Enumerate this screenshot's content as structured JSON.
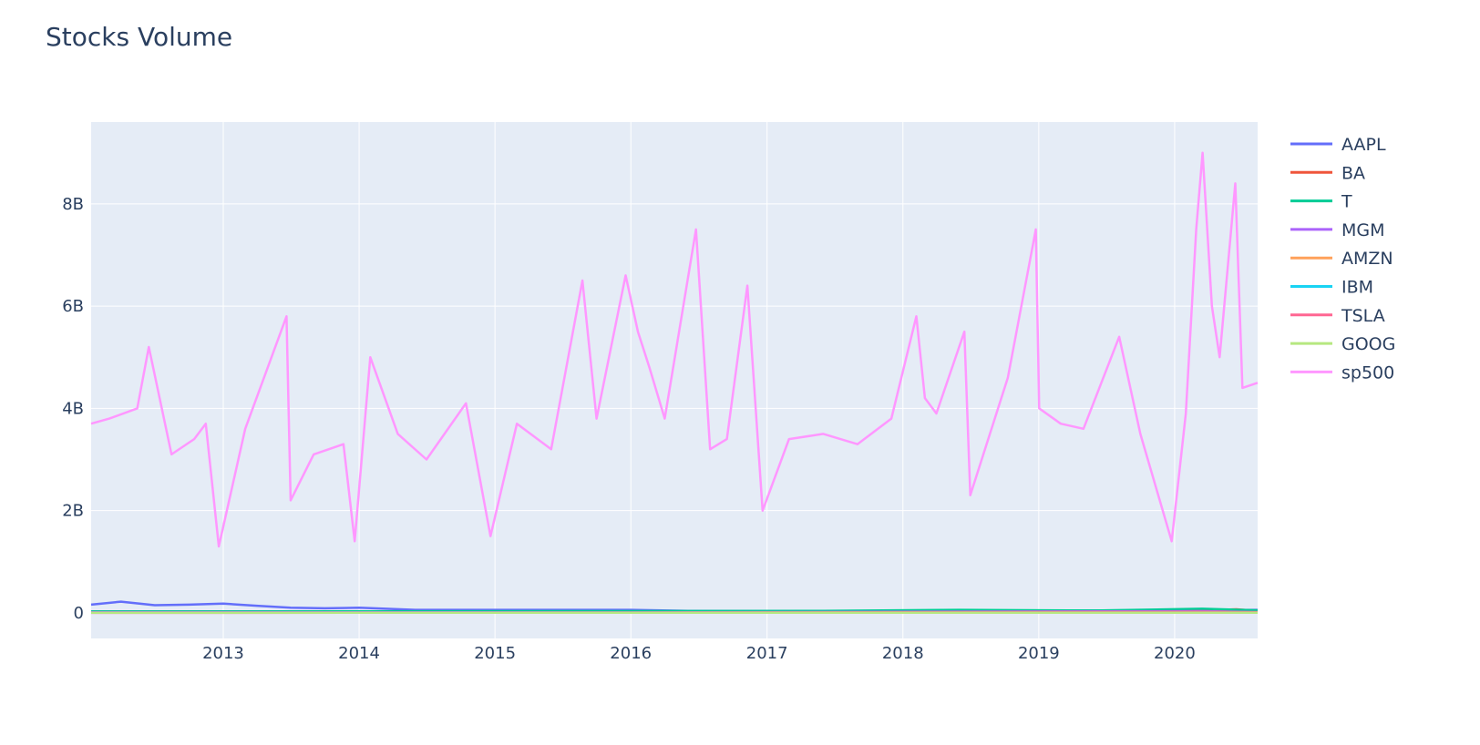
{
  "chart_data": {
    "type": "line",
    "title": "Stocks Volume",
    "xlabel": "",
    "ylabel": "",
    "x_range": [
      "2012-01-12",
      "2020-08-11"
    ],
    "ylim": [
      -500000000.0,
      9600000000.0
    ],
    "y_ticks": [
      {
        "value": 0,
        "label": "0"
      },
      {
        "value": 2000000000.0,
        "label": "2B"
      },
      {
        "value": 4000000000.0,
        "label": "4B"
      },
      {
        "value": 6000000000.0,
        "label": "6B"
      },
      {
        "value": 8000000000.0,
        "label": "8B"
      }
    ],
    "x_ticks": [
      {
        "value": "2013-01-01",
        "label": "2013"
      },
      {
        "value": "2014-01-01",
        "label": "2014"
      },
      {
        "value": "2015-01-01",
        "label": "2015"
      },
      {
        "value": "2016-01-01",
        "label": "2016"
      },
      {
        "value": "2017-01-01",
        "label": "2017"
      },
      {
        "value": "2018-01-01",
        "label": "2018"
      },
      {
        "value": "2019-01-01",
        "label": "2019"
      },
      {
        "value": "2020-01-01",
        "label": "2020"
      }
    ],
    "grid": true,
    "legend_position": "right",
    "series": [
      {
        "name": "AAPL",
        "color": "#636efa",
        "x": [
          "2012-01-12",
          "2012-04-01",
          "2012-07-01",
          "2012-10-01",
          "2013-01-01",
          "2013-04-01",
          "2013-07-01",
          "2013-10-01",
          "2014-01-01",
          "2014-06-01",
          "2015-01-01",
          "2015-06-01",
          "2016-01-01",
          "2016-06-01",
          "2017-01-01",
          "2018-01-01",
          "2019-01-01",
          "2020-01-01",
          "2020-08-11"
        ],
        "values": [
          160000000.0,
          220000000.0,
          150000000.0,
          160000000.0,
          180000000.0,
          140000000.0,
          100000000.0,
          90000000.0,
          100000000.0,
          60000000.0,
          60000000.0,
          60000000.0,
          60000000.0,
          40000000.0,
          35000000.0,
          40000000.0,
          45000000.0,
          50000000.0,
          60000000.0
        ]
      },
      {
        "name": "BA",
        "color": "#ef553b",
        "x": [
          "2012-01-12",
          "2016-01-01",
          "2019-01-01",
          "2020-03-15",
          "2020-06-15",
          "2020-08-11"
        ],
        "values": [
          5000000.0,
          5000000.0,
          6000000.0,
          50000000.0,
          70000000.0,
          40000000.0
        ]
      },
      {
        "name": "T",
        "color": "#00cc96",
        "x": [
          "2012-01-12",
          "2014-01-01",
          "2016-01-01",
          "2017-06-01",
          "2018-06-01",
          "2019-06-01",
          "2020-03-15",
          "2020-08-11"
        ],
        "values": [
          30000000.0,
          30000000.0,
          35000000.0,
          40000000.0,
          60000000.0,
          45000000.0,
          80000000.0,
          50000000.0
        ]
      },
      {
        "name": "MGM",
        "color": "#ab63fa",
        "x": [
          "2012-01-12",
          "2016-01-01",
          "2020-03-15",
          "2020-08-11"
        ],
        "values": [
          15000000.0,
          10000000.0,
          35000000.0,
          15000000.0
        ]
      },
      {
        "name": "AMZN",
        "color": "#ffa15a",
        "x": [
          "2012-01-12",
          "2016-01-01",
          "2020-08-11"
        ],
        "values": [
          4000000.0,
          4000000.0,
          5000000.0
        ]
      },
      {
        "name": "IBM",
        "color": "#19d3f3",
        "x": [
          "2012-01-12",
          "2016-01-01",
          "2020-08-11"
        ],
        "values": [
          4000000.0,
          4000000.0,
          5000000.0
        ]
      },
      {
        "name": "TSLA",
        "color": "#ff6692",
        "x": [
          "2012-01-12",
          "2016-01-01",
          "2020-03-01",
          "2020-08-11"
        ],
        "values": [
          1000000.0,
          5000000.0,
          20000000.0,
          15000000.0
        ]
      },
      {
        "name": "GOOG",
        "color": "#b6e880",
        "x": [
          "2012-01-12",
          "2016-01-01",
          "2020-08-11"
        ],
        "values": [
          3000000.0,
          2000000.0,
          3000000.0
        ]
      },
      {
        "name": "sp500",
        "color": "#ff97ff",
        "x": [
          "2012-01-12",
          "2012-03-01",
          "2012-05-15",
          "2012-06-15",
          "2012-08-15",
          "2012-10-15",
          "2012-11-15",
          "2012-12-20",
          "2013-03-01",
          "2013-06-20",
          "2013-07-01",
          "2013-09-01",
          "2013-11-20",
          "2013-12-20",
          "2014-01-31",
          "2014-04-15",
          "2014-07-01",
          "2014-10-15",
          "2014-12-20",
          "2015-03-01",
          "2015-06-01",
          "2015-08-24",
          "2015-10-01",
          "2015-12-18",
          "2016-01-20",
          "2016-02-20",
          "2016-04-01",
          "2016-06-24",
          "2016-08-01",
          "2016-09-15",
          "2016-11-09",
          "2016-12-20",
          "2017-03-01",
          "2017-06-01",
          "2017-09-01",
          "2017-12-01",
          "2018-02-06",
          "2018-03-01",
          "2018-04-01",
          "2018-06-15",
          "2018-07-01",
          "2018-10-10",
          "2018-12-24",
          "2019-01-02",
          "2019-03-01",
          "2019-05-01",
          "2019-08-05",
          "2019-10-01",
          "2019-12-24",
          "2020-01-31",
          "2020-02-28",
          "2020-03-16",
          "2020-04-10",
          "2020-05-01",
          "2020-06-12",
          "2020-07-01",
          "2020-08-11"
        ],
        "values": [
          3700000000.0,
          3800000000.0,
          4000000000.0,
          5200000000.0,
          3100000000.0,
          3400000000.0,
          3700000000.0,
          1300000000.0,
          3600000000.0,
          5800000000.0,
          2200000000.0,
          3100000000.0,
          3300000000.0,
          1400000000.0,
          5000000000.0,
          3500000000.0,
          3000000000.0,
          4100000000.0,
          1500000000.0,
          3700000000.0,
          3200000000.0,
          6500000000.0,
          3800000000.0,
          6600000000.0,
          5500000000.0,
          4800000000.0,
          3800000000.0,
          7500000000.0,
          3200000000.0,
          3400000000.0,
          6400000000.0,
          2000000000.0,
          3400000000.0,
          3500000000.0,
          3300000000.0,
          3800000000.0,
          5800000000.0,
          4200000000.0,
          3900000000.0,
          5500000000.0,
          2300000000.0,
          4600000000.0,
          7500000000.0,
          4000000000.0,
          3700000000.0,
          3600000000.0,
          5400000000.0,
          3500000000.0,
          1400000000.0,
          3900000000.0,
          7500000000.0,
          9000000000.0,
          6000000000.0,
          5000000000.0,
          8400000000.0,
          4400000000.0,
          4500000000.0
        ]
      }
    ]
  }
}
